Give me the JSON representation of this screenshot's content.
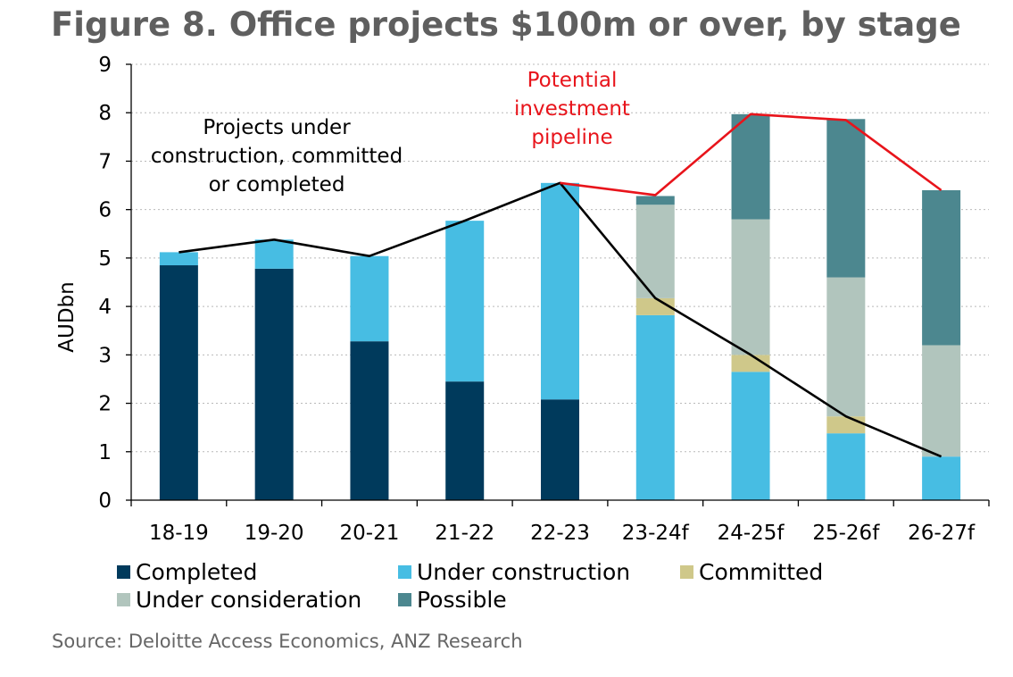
{
  "title": "Figure 8. Office projects $100m or over, by stage",
  "source": "Source: Deloitte Access Economics, ANZ Research",
  "chart_data": {
    "type": "bar",
    "stacked": true,
    "categories": [
      "18-19",
      "19-20",
      "20-21",
      "21-22",
      "22-23",
      "23-24f",
      "24-25f",
      "25-26f",
      "26-27f"
    ],
    "ylabel": "AUDbn",
    "xlabel": "",
    "ylim": [
      0,
      9
    ],
    "yticks": [
      0,
      1,
      2,
      3,
      4,
      5,
      6,
      7,
      8,
      9
    ],
    "grid": true,
    "legend_position": "bottom",
    "series": [
      {
        "name": "Completed",
        "color": "#003a5c",
        "values": [
          4.85,
          4.78,
          3.28,
          2.45,
          2.08,
          0,
          0,
          0,
          0
        ]
      },
      {
        "name": "Under construction",
        "color": "#47bde3",
        "values": [
          0.27,
          0.6,
          1.76,
          3.32,
          4.47,
          3.82,
          2.65,
          1.38,
          0.9
        ]
      },
      {
        "name": "Committed",
        "color": "#cfc88a",
        "values": [
          0,
          0,
          0,
          0,
          0,
          0.35,
          0.35,
          0.35,
          0
        ]
      },
      {
        "name": "Under consideration",
        "color": "#b1c5bd",
        "values": [
          0,
          0,
          0,
          0,
          0,
          1.93,
          2.8,
          2.87,
          2.3
        ]
      },
      {
        "name": "Possible",
        "color": "#4c878f",
        "values": [
          0,
          0,
          0,
          0,
          0,
          0.18,
          2.17,
          3.27,
          3.2
        ]
      }
    ],
    "lines": [
      {
        "color": "#000000",
        "values": [
          5.12,
          5.38,
          5.04,
          5.77,
          6.55,
          4.17,
          3.0,
          1.73,
          0.9
        ]
      },
      {
        "color": "#e8141b",
        "start_index": 4,
        "values": [
          6.55,
          6.3,
          7.97,
          7.85,
          6.4
        ]
      }
    ],
    "annotations": [
      {
        "lines": [
          "Projects under",
          "construction, committed",
          "or completed"
        ],
        "color": "#000000"
      },
      {
        "lines": [
          "Potential",
          "investment",
          "pipeline"
        ],
        "color": "#e8141b"
      }
    ]
  }
}
